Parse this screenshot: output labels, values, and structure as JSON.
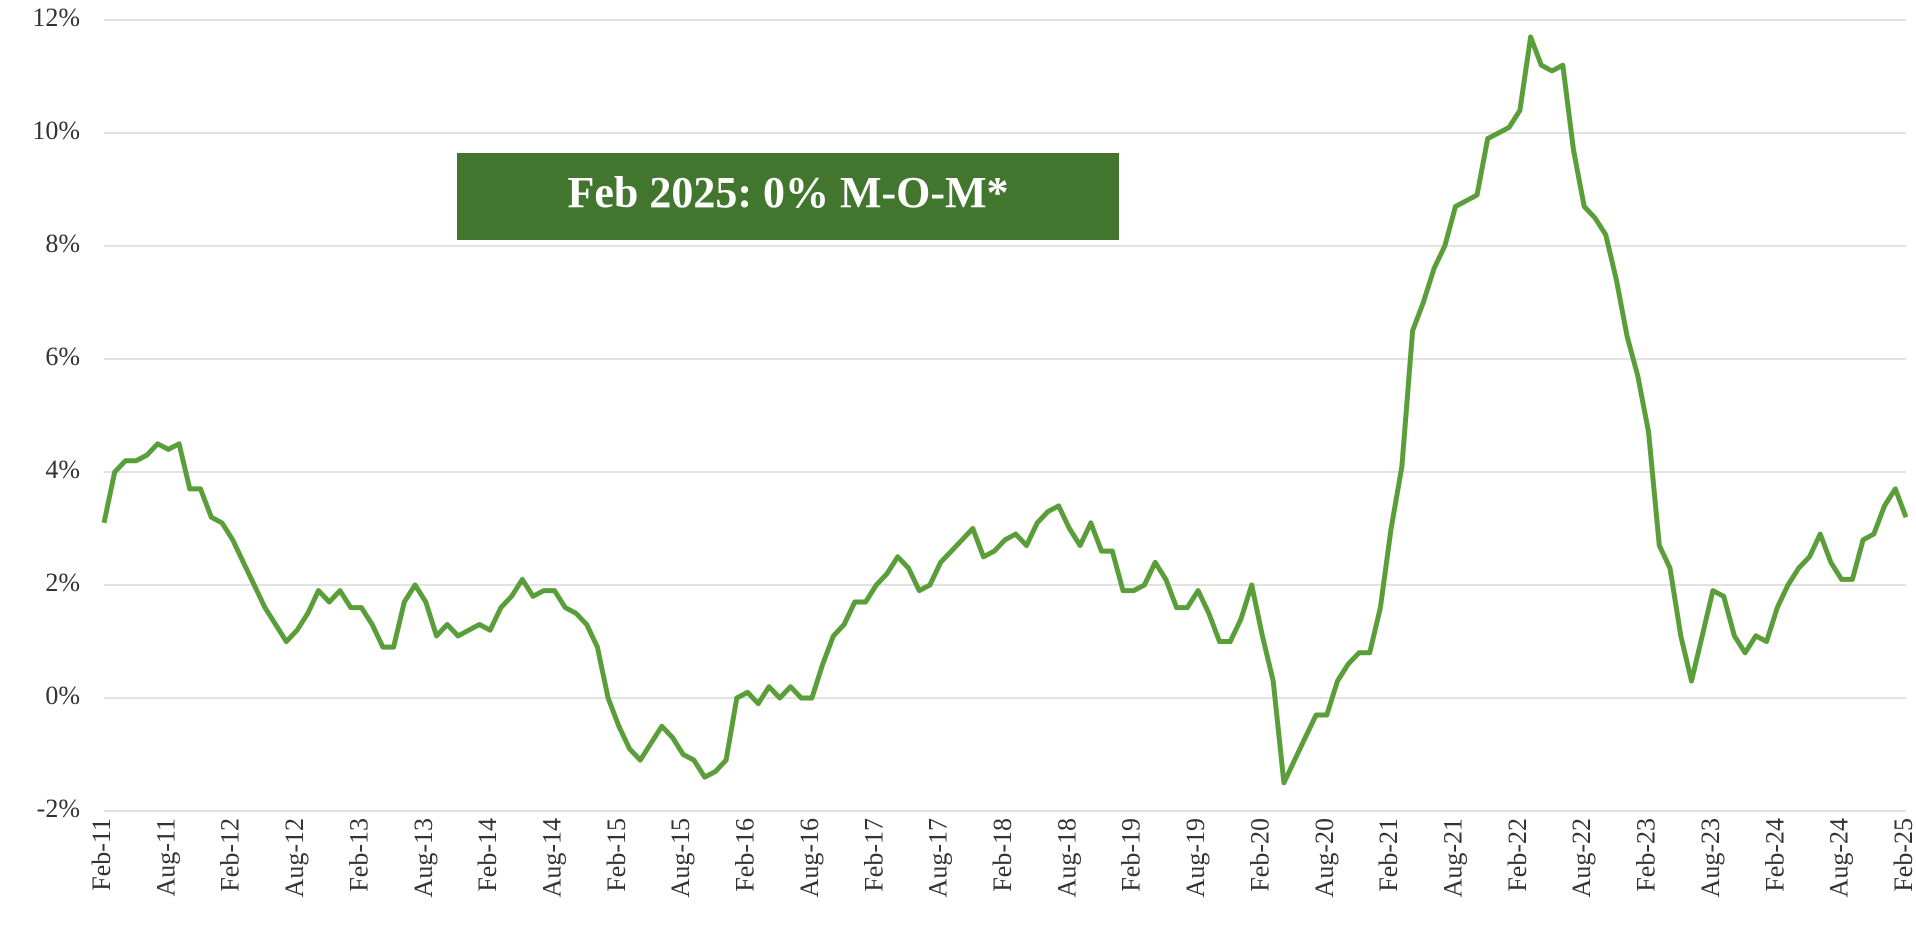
{
  "chart_data": {
    "type": "line",
    "annotation": "Feb 2025: 0% M-O-M*",
    "categories": [
      "Feb-11",
      null,
      null,
      null,
      null,
      null,
      "Aug-11",
      null,
      null,
      null,
      null,
      null,
      "Feb-12",
      null,
      null,
      null,
      null,
      null,
      "Aug-12",
      null,
      null,
      null,
      null,
      null,
      "Feb-13",
      null,
      null,
      null,
      null,
      null,
      "Aug-13",
      null,
      null,
      null,
      null,
      null,
      "Feb-14",
      null,
      null,
      null,
      null,
      null,
      "Aug-14",
      null,
      null,
      null,
      null,
      null,
      "Feb-15",
      null,
      null,
      null,
      null,
      null,
      "Aug-15",
      null,
      null,
      null,
      null,
      null,
      "Feb-16",
      null,
      null,
      null,
      null,
      null,
      "Aug-16",
      null,
      null,
      null,
      null,
      null,
      "Feb-17",
      null,
      null,
      null,
      null,
      null,
      "Aug-17",
      null,
      null,
      null,
      null,
      null,
      "Feb-18",
      null,
      null,
      null,
      null,
      null,
      "Aug-18",
      null,
      null,
      null,
      null,
      null,
      "Feb-19",
      null,
      null,
      null,
      null,
      null,
      "Aug-19",
      null,
      null,
      null,
      null,
      null,
      "Feb-20",
      null,
      null,
      null,
      null,
      null,
      "Aug-20",
      null,
      null,
      null,
      null,
      null,
      "Feb-21",
      null,
      null,
      null,
      null,
      null,
      "Aug-21",
      null,
      null,
      null,
      null,
      null,
      "Feb-22",
      null,
      null,
      null,
      null,
      null,
      "Aug-22",
      null,
      null,
      null,
      null,
      null,
      "Feb-23",
      null,
      null,
      null,
      null,
      null,
      "Aug-23",
      null,
      null,
      null,
      null,
      null,
      "Feb-24",
      null,
      null,
      null,
      null,
      null,
      "Aug-24",
      null,
      null,
      null,
      null,
      null,
      "Feb-25"
    ],
    "values": [
      3.1,
      4.0,
      4.2,
      4.2,
      4.3,
      4.5,
      4.4,
      4.5,
      3.7,
      3.7,
      3.2,
      3.1,
      2.8,
      2.4,
      2.0,
      1.6,
      1.3,
      1.0,
      1.2,
      1.5,
      1.9,
      1.7,
      1.9,
      1.6,
      1.6,
      1.3,
      0.9,
      0.9,
      1.7,
      2.0,
      1.7,
      1.1,
      1.3,
      1.1,
      1.2,
      1.3,
      1.2,
      1.6,
      1.8,
      2.1,
      1.8,
      1.9,
      1.9,
      1.6,
      1.5,
      1.3,
      0.9,
      0.0,
      -0.5,
      -0.9,
      -1.1,
      -0.8,
      -0.5,
      -0.7,
      -1.0,
      -1.1,
      -1.4,
      -1.3,
      -1.1,
      0.0,
      0.1,
      -0.1,
      0.2,
      0.0,
      0.2,
      0.0,
      0.0,
      0.6,
      1.1,
      1.3,
      1.7,
      1.7,
      2.0,
      2.2,
      2.5,
      2.3,
      1.9,
      2.0,
      2.4,
      2.6,
      2.8,
      3.0,
      2.5,
      2.6,
      2.8,
      2.9,
      2.7,
      3.1,
      3.3,
      3.4,
      3.0,
      2.7,
      3.1,
      2.6,
      2.6,
      1.9,
      1.9,
      2.0,
      2.4,
      2.1,
      1.6,
      1.6,
      1.9,
      1.5,
      1.0,
      1.0,
      1.4,
      2.0,
      1.1,
      0.3,
      -1.5,
      -1.1,
      -0.7,
      -0.3,
      -0.3,
      0.3,
      0.6,
      0.8,
      0.8,
      1.6,
      3.0,
      4.1,
      6.5,
      7.0,
      7.6,
      8.0,
      8.7,
      8.8,
      8.9,
      9.9,
      10.0,
      10.1,
      10.4,
      11.7,
      11.2,
      11.1,
      11.2,
      9.7,
      8.7,
      8.5,
      8.2,
      7.4,
      6.4,
      5.7,
      4.7,
      2.7,
      2.3,
      1.1,
      0.3,
      1.1,
      1.9,
      1.8,
      1.1,
      0.8,
      1.1,
      1.0,
      1.6,
      2.0,
      2.3,
      2.5,
      2.9,
      2.4,
      2.1,
      2.1,
      2.8,
      2.9,
      3.4,
      3.7,
      3.2
    ],
    "color": "#5a9e3a",
    "ylim": [
      -2,
      12
    ],
    "yticks": [
      {
        "value": -2,
        "label": "-2%"
      },
      {
        "value": 0,
        "label": "0%"
      },
      {
        "value": 2,
        "label": "2%"
      },
      {
        "value": 4,
        "label": "4%"
      },
      {
        "value": 6,
        "label": "6%"
      },
      {
        "value": 8,
        "label": "8%"
      },
      {
        "value": 10,
        "label": "10%"
      },
      {
        "value": 12,
        "label": "12%"
      }
    ],
    "grid": true
  }
}
